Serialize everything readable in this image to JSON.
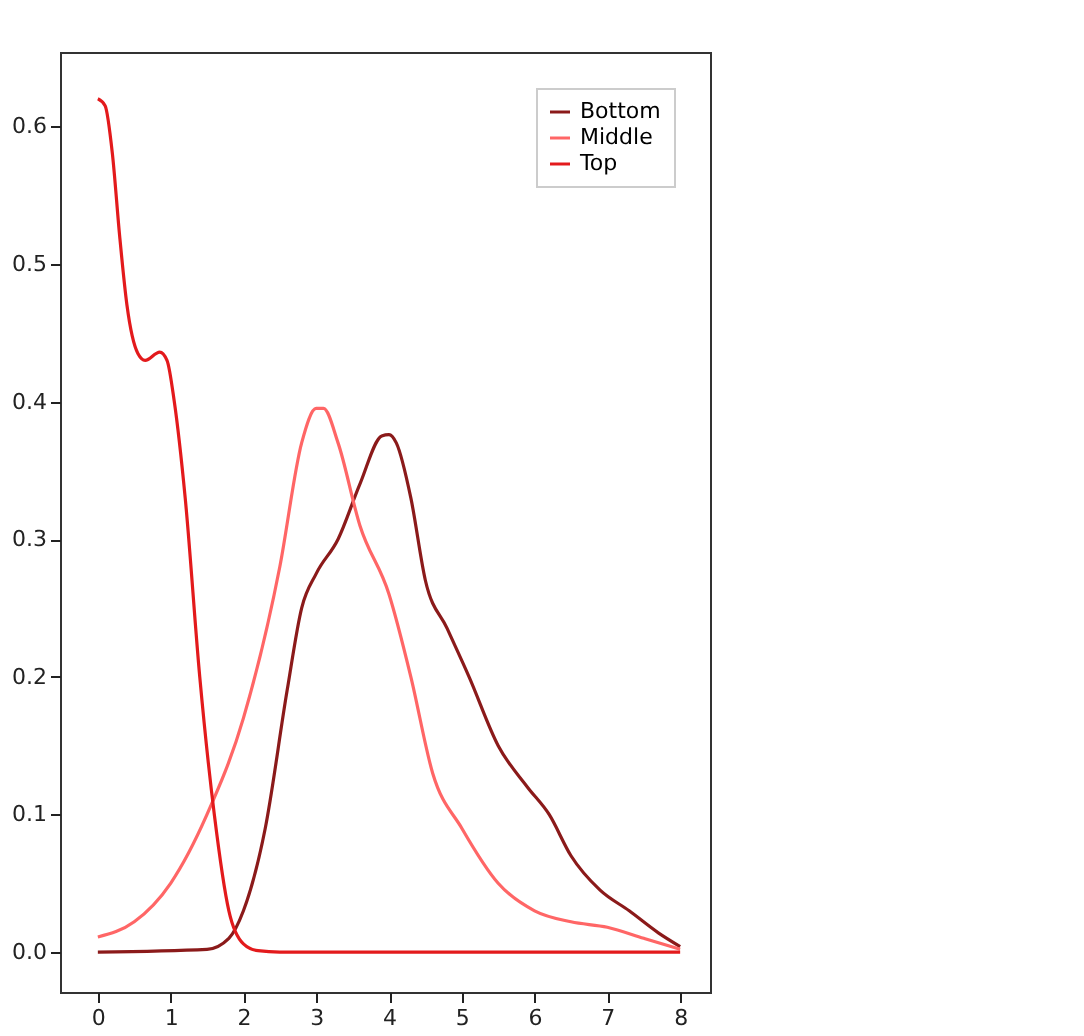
{
  "chart_data": {
    "type": "line",
    "xlim": [
      -0.52,
      8.41
    ],
    "ylim": [
      -0.029,
      0.654
    ],
    "xticks": [
      0,
      1,
      2,
      3,
      4,
      5,
      6,
      7,
      8
    ],
    "yticks": [
      {
        "value": 0,
        "label": "0.0"
      },
      {
        "value": 0.1,
        "label": "0.1"
      },
      {
        "value": 0.2,
        "label": "0.2"
      },
      {
        "value": 0.3,
        "label": "0.3"
      },
      {
        "value": 0.4,
        "label": "0.4"
      },
      {
        "value": 0.5,
        "label": "0.5"
      },
      {
        "value": 0.6,
        "label": "0.6"
      }
    ],
    "grid": false,
    "legend": "top right",
    "marker": "none",
    "line_style": "solid",
    "series": [
      {
        "name": "Bottom",
        "color": "#8b1a1a",
        "x": [
          0,
          1.5,
          1.8,
          2,
          2.3,
          2.6,
          2.8,
          3,
          3.3,
          3.6,
          3.9,
          4.0,
          4.1,
          4.3,
          4.5,
          4.8,
          5.1,
          5.5,
          5.9,
          6.2,
          6.5,
          6.9,
          7.3,
          7.7,
          8
        ],
        "values": [
          0,
          0.002,
          0.01,
          0.03,
          0.09,
          0.19,
          0.25,
          0.275,
          0.3,
          0.34,
          0.375,
          0.376,
          0.37,
          0.33,
          0.27,
          0.235,
          0.2,
          0.15,
          0.12,
          0.1,
          0.07,
          0.045,
          0.03,
          0.014,
          0.004
        ]
      },
      {
        "name": "Middle",
        "color": "#ff6666",
        "x": [
          0,
          0.5,
          1,
          1.5,
          2,
          2.5,
          2.8,
          3,
          3.1,
          3.3,
          3.6,
          4,
          4.3,
          4.6,
          5,
          5.5,
          6,
          6.5,
          7,
          7.5,
          8
        ],
        "values": [
          0.011,
          0.022,
          0.05,
          0.1,
          0.17,
          0.28,
          0.37,
          0.395,
          0.395,
          0.37,
          0.31,
          0.26,
          0.2,
          0.13,
          0.09,
          0.05,
          0.03,
          0.022,
          0.018,
          0.01,
          0.002
        ]
      },
      {
        "name": "Top",
        "color": "#e31a1c",
        "x": [
          0,
          0.1,
          0.2,
          0.3,
          0.4,
          0.55,
          0.65,
          0.85,
          0.95,
          1.05,
          1.2,
          1.4,
          1.6,
          1.8,
          2.0,
          2.2,
          2.5,
          8
        ],
        "values": [
          0.62,
          0.615,
          0.58,
          0.52,
          0.47,
          0.435,
          0.43,
          0.436,
          0.43,
          0.4,
          0.33,
          0.2,
          0.1,
          0.03,
          0.006,
          0.001,
          0,
          0
        ]
      }
    ]
  }
}
